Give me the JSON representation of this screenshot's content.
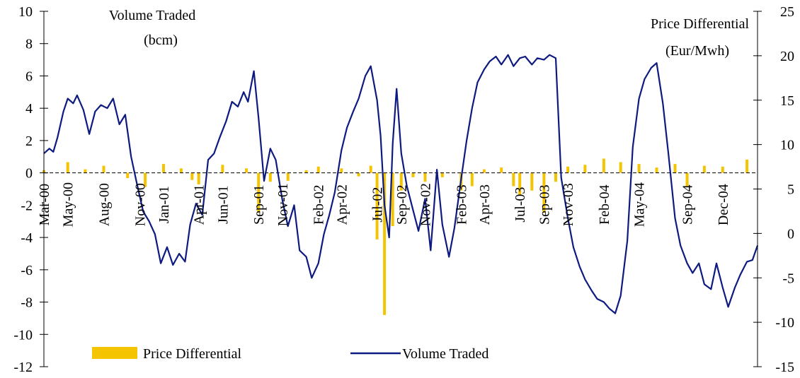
{
  "chart_data": {
    "type": "bar",
    "left_axis": {
      "title_line1": "Volume Traded",
      "title_line2": "(bcm)",
      "ylim": [
        -12,
        10
      ],
      "ticks": [
        "10",
        "8",
        "6",
        "4",
        "2",
        "0",
        "-2",
        "-4",
        "-6",
        "-8",
        "-10",
        "-12"
      ]
    },
    "right_axis": {
      "title_line1": "Price Differential",
      "title_line2": "(Eur/Mwh)",
      "ylim": [
        -15,
        25
      ],
      "ticks": [
        "25",
        "20",
        "15",
        "10",
        "5",
        "0",
        "-5",
        "-10",
        "-15"
      ]
    },
    "x_tick_labels": [
      "Mar-00",
      "May-00",
      "Aug-00",
      "Nov-00",
      "Jan-01",
      "Apr-01",
      "Jun-01",
      "Sep-01",
      "Nov-01",
      "Feb-02",
      "Apr-02",
      "Jul-02",
      "Sep-02",
      "Nov-02",
      "Feb-03",
      "Apr-03",
      "Jul-03",
      "Sep-03",
      "Nov-03",
      "Feb-04",
      "May-04",
      "Sep-04",
      "Dec-04"
    ],
    "x_tick_dates": [
      "2000-03-01",
      "2000-05-01",
      "2000-08-01",
      "2000-11-01",
      "2001-01-01",
      "2001-04-01",
      "2001-06-01",
      "2001-09-01",
      "2001-11-01",
      "2002-02-01",
      "2002-04-01",
      "2002-07-01",
      "2002-09-01",
      "2002-11-01",
      "2003-02-01",
      "2003-04-01",
      "2003-07-01",
      "2003-09-01",
      "2003-11-01",
      "2004-02-01",
      "2004-05-01",
      "2004-09-01",
      "2004-12-01"
    ],
    "x_range": [
      "2000-03-01",
      "2005-02-28"
    ],
    "legend_position": "bottom",
    "series": [
      {
        "name": "Price Differential",
        "type": "bar",
        "axis": "right",
        "color": "#f5c400",
        "x": [
          "2000-03-01",
          "2000-05-01",
          "2000-06-15",
          "2000-08-01",
          "2000-10-01",
          "2000-11-15",
          "2001-01-01",
          "2001-02-15",
          "2001-03-15",
          "2001-04-01",
          "2001-06-01",
          "2001-08-01",
          "2001-09-01",
          "2001-10-01",
          "2001-11-15",
          "2002-01-01",
          "2002-02-01",
          "2002-04-01",
          "2002-05-15",
          "2002-06-15",
          "2002-07-01",
          "2002-07-20",
          "2002-08-10",
          "2002-09-01",
          "2002-10-01",
          "2002-11-01",
          "2002-12-15",
          "2003-02-01",
          "2003-03-01",
          "2003-04-01",
          "2003-05-15",
          "2003-06-15",
          "2003-07-01",
          "2003-08-01",
          "2003-09-01",
          "2003-10-01",
          "2003-11-01",
          "2003-12-15",
          "2004-02-01",
          "2004-03-15",
          "2004-05-01",
          "2004-06-15",
          "2004-08-01",
          "2004-09-01",
          "2004-10-15",
          "2004-12-01",
          "2005-02-01"
        ],
        "values": [
          0.3,
          1.2,
          0.4,
          0.8,
          -0.6,
          -1.6,
          1.0,
          0.5,
          -0.8,
          -1.3,
          0.9,
          0.5,
          -4.5,
          -1.0,
          -0.9,
          0.3,
          0.7,
          0.5,
          -0.4,
          0.8,
          -7.5,
          -16,
          -6.0,
          -2.0,
          -0.5,
          -1.0,
          -0.5,
          -2.0,
          -1.5,
          0.4,
          0.6,
          -1.5,
          -2.5,
          -2.0,
          -4.5,
          -1.0,
          0.7,
          0.9,
          1.6,
          1.2,
          1.0,
          0.6,
          1.0,
          -1.5,
          0.8,
          0.7,
          1.5
        ]
      },
      {
        "name": "Volume Traded",
        "type": "line",
        "axis": "left",
        "color": "#0d1a80",
        "x": [
          "2000-03-01",
          "2000-03-15",
          "2000-03-25",
          "2000-04-05",
          "2000-04-20",
          "2000-05-01",
          "2000-05-15",
          "2000-05-25",
          "2000-06-10",
          "2000-06-25",
          "2000-07-10",
          "2000-07-25",
          "2000-08-10",
          "2000-08-25",
          "2000-09-10",
          "2000-09-25",
          "2000-10-10",
          "2000-10-25",
          "2000-11-10",
          "2000-11-25",
          "2000-12-10",
          "2000-12-25",
          "2001-01-10",
          "2001-01-25",
          "2001-02-10",
          "2001-02-25",
          "2001-03-10",
          "2001-03-25",
          "2001-04-10",
          "2001-04-25",
          "2001-05-10",
          "2001-05-25",
          "2001-06-10",
          "2001-06-25",
          "2001-07-10",
          "2001-07-25",
          "2001-08-05",
          "2001-08-20",
          "2001-09-01",
          "2001-09-15",
          "2001-10-01",
          "2001-10-15",
          "2001-11-01",
          "2001-11-15",
          "2001-12-01",
          "2001-12-15",
          "2002-01-01",
          "2002-01-15",
          "2002-02-01",
          "2002-02-15",
          "2002-03-01",
          "2002-03-15",
          "2002-04-01",
          "2002-04-15",
          "2002-05-01",
          "2002-05-15",
          "2002-06-01",
          "2002-06-15",
          "2002-07-01",
          "2002-07-10",
          "2002-07-20",
          "2002-08-01",
          "2002-08-10",
          "2002-08-20",
          "2002-09-01",
          "2002-09-15",
          "2002-10-01",
          "2002-10-15",
          "2002-11-01",
          "2002-11-15",
          "2002-12-01",
          "2002-12-15",
          "2003-01-01",
          "2003-01-15",
          "2003-02-01",
          "2003-02-15",
          "2003-03-01",
          "2003-03-15",
          "2003-04-01",
          "2003-04-15",
          "2003-05-01",
          "2003-05-15",
          "2003-06-01",
          "2003-06-15",
          "2003-07-01",
          "2003-07-15",
          "2003-08-01",
          "2003-08-15",
          "2003-09-01",
          "2003-09-15",
          "2003-10-01",
          "2003-10-15",
          "2003-11-01",
          "2003-11-15",
          "2003-12-01",
          "2003-12-15",
          "2004-01-01",
          "2004-01-15",
          "2004-02-01",
          "2004-02-15",
          "2004-03-01",
          "2004-03-15",
          "2004-04-01",
          "2004-04-15",
          "2004-05-01",
          "2004-05-15",
          "2004-06-01",
          "2004-06-15",
          "2004-07-01",
          "2004-07-15",
          "2004-08-01",
          "2004-08-15",
          "2004-09-01",
          "2004-09-15",
          "2004-10-01",
          "2004-10-15",
          "2004-11-01",
          "2004-11-15",
          "2004-12-01",
          "2004-12-15",
          "2005-01-01",
          "2005-01-15",
          "2005-02-01",
          "2005-02-15",
          "2005-02-28"
        ],
        "values": [
          1.2,
          1.5,
          1.3,
          2.2,
          3.8,
          4.6,
          4.3,
          4.8,
          3.9,
          2.4,
          3.8,
          4.2,
          4.0,
          4.6,
          3.0,
          3.6,
          1.0,
          -0.7,
          -2.4,
          -3.0,
          -3.8,
          -5.6,
          -4.6,
          -5.7,
          -5.0,
          -5.5,
          -3.2,
          -1.9,
          -2.6,
          0.8,
          1.2,
          2.2,
          3.2,
          4.4,
          4.1,
          5.0,
          4.4,
          6.3,
          3.4,
          -0.5,
          1.5,
          0.8,
          -1.7,
          -3.3,
          -2.0,
          -4.8,
          -5.2,
          -6.5,
          -5.6,
          -3.8,
          -2.6,
          -1.2,
          1.4,
          2.8,
          3.8,
          4.6,
          6.0,
          6.6,
          4.5,
          2.3,
          -2.0,
          -4.0,
          1.8,
          5.2,
          1.2,
          -0.8,
          -2.3,
          -3.6,
          -1.6,
          -4.8,
          0.2,
          -3.2,
          -5.2,
          -3.4,
          -0.4,
          2.0,
          4.0,
          5.6,
          6.4,
          6.9,
          7.2,
          6.7,
          7.3,
          6.6,
          7.1,
          7.2,
          6.7,
          7.1,
          7.0,
          7.3,
          7.1,
          -0.3,
          -2.8,
          -4.6,
          -5.8,
          -6.6,
          -7.3,
          -7.8,
          -8.0,
          -8.4,
          -8.7,
          -7.6,
          -4.2,
          1.6,
          4.6,
          5.8,
          6.5,
          6.8,
          4.3,
          1.2,
          -2.8,
          -4.5,
          -5.6,
          -6.2,
          -5.6,
          -6.9,
          -7.2,
          -5.6,
          -7.1,
          -8.3,
          -7.1,
          -6.3,
          -5.5,
          -5.4,
          -4.5
        ]
      }
    ]
  }
}
